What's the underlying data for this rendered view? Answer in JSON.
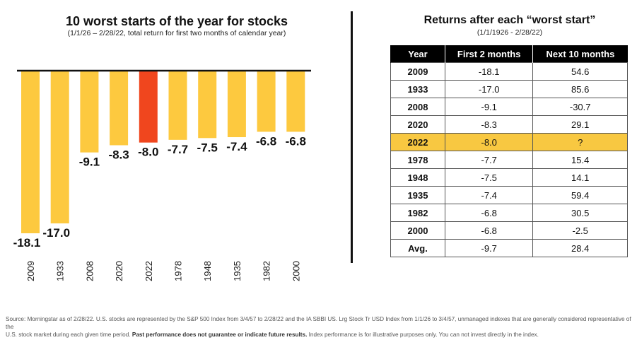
{
  "left": {
    "title": "10 worst starts of the year for stocks",
    "subtitle": "(1/1/26 – 2/28/22, total return for first two months of calendar year)"
  },
  "right": {
    "title": "Returns after each “worst start”",
    "subtitle": "(1/1/1926 - 2/28/22)",
    "columns": [
      "Year",
      "First 2 months",
      "Next 10 months"
    ],
    "rows": [
      [
        "2009",
        "-18.1",
        "54.6"
      ],
      [
        "1933",
        "-17.0",
        "85.6"
      ],
      [
        "2008",
        "-9.1",
        "-30.7"
      ],
      [
        "2020",
        "-8.3",
        "29.1"
      ],
      [
        "2022",
        "-8.0",
        "?"
      ],
      [
        "1978",
        "-7.7",
        "15.4"
      ],
      [
        "1948",
        "-7.5",
        "14.1"
      ],
      [
        "1935",
        "-7.4",
        "59.4"
      ],
      [
        "1982",
        "-6.8",
        "30.5"
      ],
      [
        "2000",
        "-6.8",
        "-2.5"
      ],
      [
        "Avg.",
        "-9.7",
        "28.4"
      ]
    ],
    "highlight_row": "2022"
  },
  "chart_data": {
    "type": "bar",
    "title": "10 worst starts of the year for stocks",
    "subtitle": "(1/1/26 – 2/28/22, total return for first two months of calendar year)",
    "categories": [
      "2009",
      "1933",
      "2008",
      "2020",
      "2022",
      "1978",
      "1948",
      "1935",
      "1982",
      "2000"
    ],
    "values": [
      -18.1,
      -17.0,
      -9.1,
      -8.3,
      -8.0,
      -7.7,
      -7.5,
      -7.4,
      -6.8,
      -6.8
    ],
    "value_labels": [
      "-18.1",
      "-17.0",
      "-9.1",
      "-8.3",
      "-8.0",
      "-7.7",
      "-7.5",
      "-7.4",
      "-6.8",
      "-6.8"
    ],
    "highlight_category": "2022",
    "colors": {
      "bar": "#fdc93f",
      "highlight": "#f0461e",
      "baseline": "#111111"
    },
    "ylim": [
      -18.1,
      0
    ],
    "grid": false,
    "legend": "none"
  },
  "footer": {
    "line1": "Source: Morningstar as of 2/28/22. U.S. stocks are represented by the S&P 500 Index from 3/4/57 to 2/28/22 and the IA SBBI US. Lrg Stock Tr USD Index from 1/1/26 to 3/4/57, unmanaged indexes that are generally considered representative of the",
    "line2_a": "U.S. stock market during each given time period.",
    "line2_bold": "Past performance does not guarantee or indicate future results.",
    "line2_b": "Index performance is for illustrative purposes only. You can not invest directly in the index."
  }
}
